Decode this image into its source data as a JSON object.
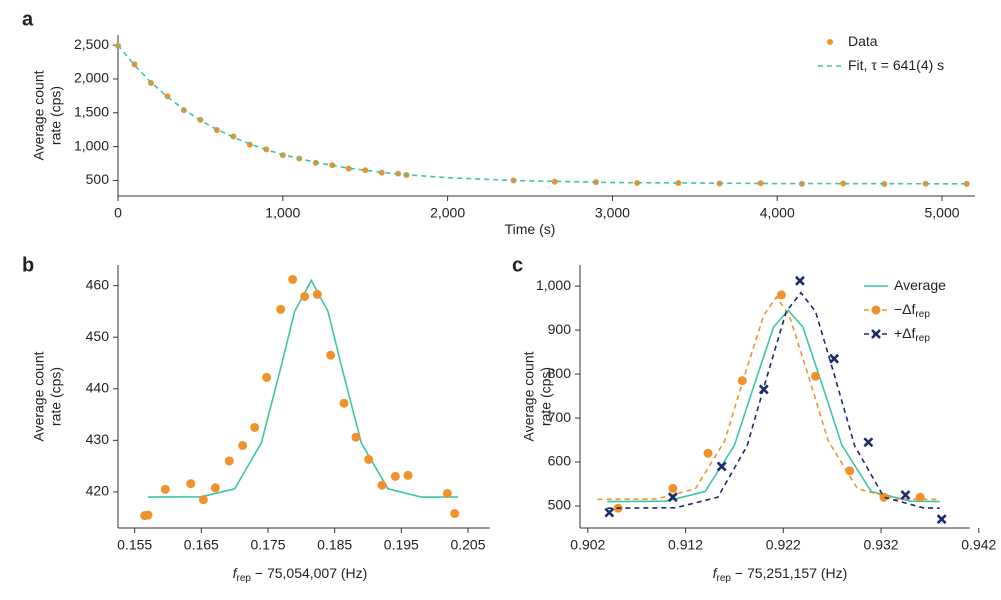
{
  "chart_data": [
    {
      "type": "scatter",
      "label": "a",
      "xlabel": {
        "main": "Time (s)"
      },
      "ylabel": [
        "Average count",
        "rate (cps)"
      ],
      "xlim": [
        0,
        5200
      ],
      "ylim": [
        270,
        2650
      ],
      "xticks": [
        0,
        {
          "value": 1000,
          "label": "1,000"
        },
        {
          "value": 2000,
          "label": "2,000"
        },
        {
          "value": 3000,
          "label": "3,000"
        },
        {
          "value": 4000,
          "label": "4,000"
        },
        {
          "value": 5000,
          "label": "5,000"
        }
      ],
      "yticks": [
        500,
        {
          "value": 1000,
          "label": "1,000"
        },
        {
          "value": 1500,
          "label": "1,500"
        },
        {
          "value": 2000,
          "label": "2,000"
        },
        {
          "value": 2500,
          "label": "2,500"
        }
      ],
      "legend": "upper right",
      "series": [
        {
          "name": "Data",
          "color": "#f0922b",
          "marker": "circle",
          "x": [
            0,
            100,
            200,
            300,
            400,
            500,
            600,
            700,
            800,
            900,
            1000,
            1100,
            1200,
            1300,
            1400,
            1500,
            1600,
            1700,
            1750,
            2400,
            2650,
            2900,
            3150,
            3400,
            3650,
            3900,
            4150,
            4400,
            4650,
            4900,
            5150
          ],
          "values": [
            2490,
            2215,
            1940,
            1745,
            1540,
            1395,
            1245,
            1150,
            1030,
            960,
            875,
            825,
            760,
            725,
            675,
            650,
            615,
            600,
            580,
            500,
            480,
            475,
            462,
            462,
            455,
            458,
            450,
            455,
            448,
            452,
            450
          ]
        },
        {
          "name": "Fit, τ = 641(4) s",
          "color": "#3cc6a8",
          "fit_line": "dashed",
          "fit_x": [
            0,
            100,
            200,
            300,
            400,
            500,
            600,
            700,
            800,
            900,
            1000,
            1200,
            1400,
            1600,
            1800,
            2000,
            2400,
            3000,
            4000,
            5150
          ],
          "fit_values": [
            2500,
            2203,
            1951,
            1734,
            1549,
            1389,
            1254,
            1139,
            1039,
            954,
            881,
            766,
            681,
            619,
            575,
            541,
            499,
            469,
            454,
            450
          ]
        }
      ]
    },
    {
      "type": "scatter",
      "label": "b",
      "xlabel": {
        "main": "f",
        "sub": "rep",
        "rest": " − 75,054,007 (Hz)"
      },
      "ylabel": [
        "Average count",
        "rate (cps)"
      ],
      "xlim": [
        0.1525,
        0.2083
      ],
      "ylim": [
        413,
        464
      ],
      "xticks": [
        0.155,
        0.165,
        0.175,
        0.185,
        0.195,
        0.205
      ],
      "yticks": [
        420,
        430,
        440,
        450,
        460
      ],
      "series": [
        {
          "color": "#f0922b",
          "marker": "circle",
          "x": [
            0.1565,
            0.157,
            0.1596,
            0.1634,
            0.1653,
            0.1671,
            0.1692,
            0.1712,
            0.173,
            0.1748,
            0.1769,
            0.1787,
            0.1805,
            0.1824,
            0.1844,
            0.1864,
            0.1882,
            0.1901,
            0.1921,
            0.1941,
            0.196,
            0.2019,
            0.203
          ],
          "values": [
            415.4,
            415.5,
            420.5,
            421.6,
            418.5,
            420.8,
            426,
            429,
            432.5,
            442.2,
            455.4,
            461.2,
            457.9,
            458.3,
            446.5,
            437.2,
            430.6,
            426.3,
            421.3,
            423,
            423.2,
            419.7,
            415.8
          ],
          "fit_line": "solid",
          "fit_color": "#3cc6a8",
          "fit_x": [
            0.157,
            0.165,
            0.17,
            0.174,
            0.177,
            0.179,
            0.1815,
            0.184,
            0.186,
            0.189,
            0.193,
            0.198,
            0.2035
          ],
          "fit_values": [
            419,
            419.05,
            420.6,
            429.5,
            444.5,
            455,
            461,
            455,
            444.5,
            429.5,
            420.6,
            419,
            419
          ]
        }
      ]
    },
    {
      "type": "scatter",
      "label": "c",
      "xlabel": {
        "main": "f",
        "sub": "rep",
        "rest": " − 75,251,157 (Hz)"
      },
      "ylabel": [
        "Average count",
        "rate (cps)"
      ],
      "xlim": [
        0.9012,
        0.9411
      ],
      "ylim": [
        450,
        1048
      ],
      "xticks": [
        0.902,
        0.912,
        0.922,
        0.932,
        0.942
      ],
      "yticks": [
        500,
        600,
        700,
        800,
        900,
        {
          "value": 1000,
          "label": "1,000"
        }
      ],
      "legend": "upper right",
      "series": [
        {
          "name": "Average",
          "color": "#3cc6a8",
          "fit_line": "solid",
          "fit_x": [
            0.904,
            0.91,
            0.914,
            0.917,
            0.919,
            0.921,
            0.9225,
            0.924,
            0.926,
            0.928,
            0.931,
            0.935,
            0.938
          ],
          "fit_values": [
            510,
            511,
            533,
            638,
            774,
            907,
            945,
            907,
            774,
            638,
            533,
            511,
            510
          ]
        },
        {
          "name": "−Δf",
          "name_sub": "rep",
          "color": "#f0922b",
          "marker": "circle",
          "x": [
            0.9051,
            0.9107,
            0.9143,
            0.9178,
            0.9218,
            0.9253,
            0.9288,
            0.9323,
            0.936
          ],
          "values": [
            495,
            540,
            620,
            785,
            980,
            795,
            580,
            520,
            520
          ],
          "fit_line": "dashed",
          "fit_x": [
            0.903,
            0.909,
            0.913,
            0.916,
            0.918,
            0.92,
            0.9213,
            0.9226,
            0.9246,
            0.9266,
            0.9296,
            0.9336,
            0.938
          ],
          "fit_values": [
            515,
            516,
            539,
            648,
            794,
            934,
            975,
            934,
            794,
            648,
            539,
            516,
            515
          ]
        },
        {
          "name": "+Δf",
          "name_sub": "rep",
          "color": "#1b2a6b",
          "marker": "x",
          "x": [
            0.9042,
            0.9107,
            0.9157,
            0.92,
            0.9237,
            0.9272,
            0.9307,
            0.9345,
            0.9382
          ],
          "values": [
            485,
            520,
            590,
            765,
            1012,
            835,
            645,
            525,
            470
          ],
          "fit_line": "dashed",
          "fit_x": [
            0.904,
            0.911,
            0.9153,
            0.9183,
            0.9203,
            0.9223,
            0.9238,
            0.9253,
            0.9273,
            0.9293,
            0.9323,
            0.9363,
            0.938
          ],
          "fit_values": [
            495,
            496,
            520,
            637,
            792,
            942,
            985,
            942,
            792,
            637,
            520,
            496,
            495
          ]
        }
      ]
    }
  ]
}
